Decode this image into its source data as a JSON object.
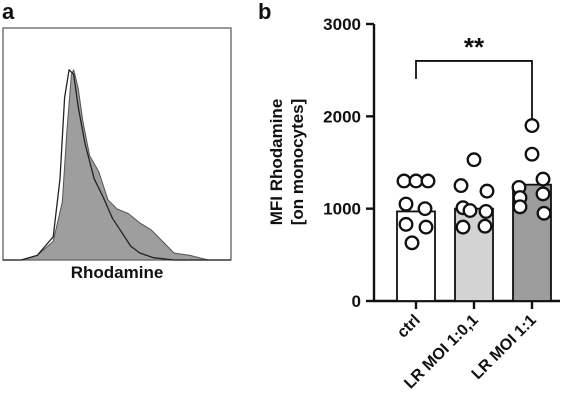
{
  "panel_a": {
    "letter": "a",
    "xlabel": "Rhodamine"
  },
  "panel_b": {
    "letter": "b",
    "significance": "**"
  },
  "chart_data": [
    {
      "type": "area",
      "panel": "a",
      "title": "",
      "xlabel": "Rhodamine",
      "ylabel": "",
      "series": [
        {
          "name": "",
          "fill": "#9e9e9e",
          "x": [
            0.0,
            0.08,
            0.15,
            0.22,
            0.26,
            0.28,
            0.3,
            0.31,
            0.33,
            0.35,
            0.38,
            0.42,
            0.46,
            0.5,
            0.55,
            0.6,
            0.65,
            0.7,
            0.75,
            0.82,
            0.9,
            1.0
          ],
          "y": [
            0.0,
            0.0,
            0.02,
            0.08,
            0.25,
            0.55,
            0.8,
            0.82,
            0.74,
            0.6,
            0.45,
            0.38,
            0.26,
            0.22,
            0.2,
            0.16,
            0.13,
            0.08,
            0.03,
            0.02,
            0.0,
            0.0
          ]
        },
        {
          "name": "",
          "fill": "none",
          "x": [
            0.0,
            0.08,
            0.15,
            0.22,
            0.25,
            0.27,
            0.29,
            0.31,
            0.33,
            0.36,
            0.4,
            0.44,
            0.48,
            0.52,
            0.56,
            0.6,
            0.66,
            0.75,
            0.85,
            1.0
          ],
          "y": [
            0.0,
            0.0,
            0.02,
            0.1,
            0.35,
            0.7,
            0.82,
            0.8,
            0.66,
            0.5,
            0.35,
            0.27,
            0.18,
            0.12,
            0.06,
            0.03,
            0.01,
            0.0,
            0.0,
            0.0
          ]
        }
      ]
    },
    {
      "type": "bar",
      "panel": "b",
      "title": "",
      "xlabel": "",
      "ylabel": "MFI Rhodamine\n[on monocytes]",
      "ylabel_lines": [
        "MFI Rhodamine",
        "[on monocytes]"
      ],
      "ylim": [
        0,
        3000
      ],
      "yticks": [
        0,
        1000,
        2000,
        3000
      ],
      "categories": [
        "ctrl",
        "LR MOI 1:0,1",
        "LR MOI 1:1"
      ],
      "values": [
        970,
        1000,
        1260
      ],
      "bar_colors": [
        "#ffffff",
        "#d3d3d3",
        "#9c9c9c"
      ],
      "points": [
        [
          1300,
          1300,
          1300,
          1050,
          1000,
          830,
          800,
          630
        ],
        [
          1530,
          1250,
          1190,
          1010,
          970,
          980,
          800,
          810
        ],
        [
          1900,
          1590,
          1320,
          1230,
          1160,
          1120,
          1020,
          950
        ]
      ],
      "annotations": [
        {
          "text": "**",
          "from": "ctrl",
          "to": "LR MOI 1:1",
          "y": 2600
        }
      ]
    }
  ]
}
